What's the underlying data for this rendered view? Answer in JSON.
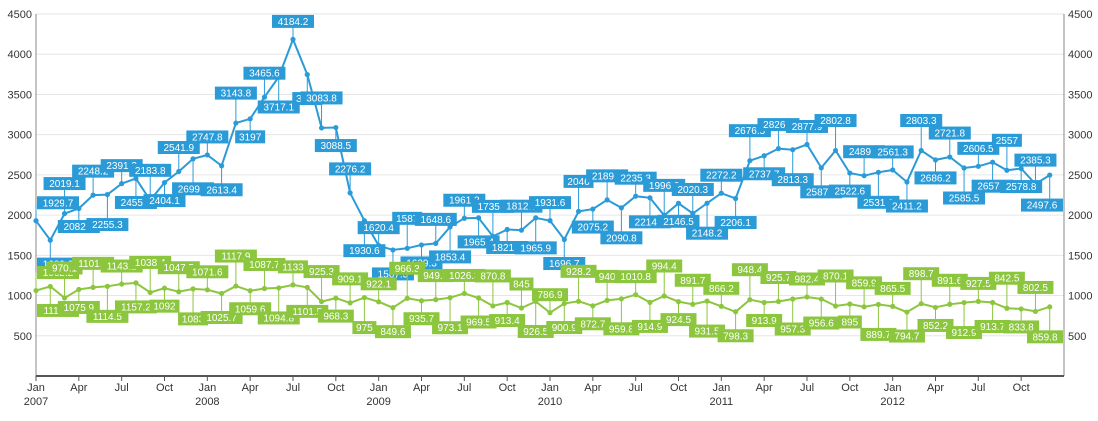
{
  "chart_data": {
    "type": "line",
    "x_axis": {
      "tick_labels": [
        {
          "month": "Jan",
          "year": "2007"
        },
        {
          "month": "Apr",
          "year": ""
        },
        {
          "month": "Jul",
          "year": ""
        },
        {
          "month": "Oct",
          "year": ""
        },
        {
          "month": "Jan",
          "year": "2008"
        },
        {
          "month": "Apr",
          "year": ""
        },
        {
          "month": "Jul",
          "year": ""
        },
        {
          "month": "Oct",
          "year": ""
        },
        {
          "month": "Jan",
          "year": "2009"
        },
        {
          "month": "Apr",
          "year": ""
        },
        {
          "month": "Jul",
          "year": ""
        },
        {
          "month": "Oct",
          "year": ""
        },
        {
          "month": "Jan",
          "year": "2010"
        },
        {
          "month": "Apr",
          "year": ""
        },
        {
          "month": "Jul",
          "year": ""
        },
        {
          "month": "Oct",
          "year": ""
        },
        {
          "month": "Jan",
          "year": "2011"
        },
        {
          "month": "Apr",
          "year": ""
        },
        {
          "month": "Jul",
          "year": ""
        },
        {
          "month": "Oct",
          "year": ""
        },
        {
          "month": "Jan",
          "year": "2012"
        },
        {
          "month": "Apr",
          "year": ""
        },
        {
          "month": "Jul",
          "year": ""
        },
        {
          "month": "Oct",
          "year": ""
        }
      ],
      "range": [
        "2007-01",
        "2012-12"
      ]
    },
    "y_axis": {
      "range": [
        0,
        4500
      ],
      "tick_labels": [
        "500",
        "1000",
        "1500",
        "2000",
        "2500",
        "3000",
        "3500",
        "4000",
        "4500"
      ],
      "tick_values": [
        500,
        1000,
        1500,
        2000,
        2500,
        3000,
        3500,
        4000,
        4500
      ],
      "right_axis_duplicate": true
    },
    "grid": true,
    "legend": "none",
    "x": [
      "2007-01",
      "2007-02",
      "2007-03",
      "2007-04",
      "2007-05",
      "2007-06",
      "2007-07",
      "2007-08",
      "2007-09",
      "2007-10",
      "2007-11",
      "2007-12",
      "2008-01",
      "2008-02",
      "2008-03",
      "2008-04",
      "2008-05",
      "2008-06",
      "2008-07",
      "2008-08",
      "2008-09",
      "2008-10",
      "2008-11",
      "2008-12",
      "2009-01",
      "2009-02",
      "2009-03",
      "2009-04",
      "2009-05",
      "2009-06",
      "2009-07",
      "2009-08",
      "2009-09",
      "2009-10",
      "2009-11",
      "2009-12",
      "2010-01",
      "2010-02",
      "2010-03",
      "2010-04",
      "2010-05",
      "2010-06",
      "2010-07",
      "2010-08",
      "2010-09",
      "2010-10",
      "2010-11",
      "2010-12",
      "2011-01",
      "2011-02",
      "2011-03",
      "2011-04",
      "2011-05",
      "2011-06",
      "2011-07",
      "2011-08",
      "2011-09",
      "2011-10",
      "2011-11",
      "2011-12",
      "2012-01",
      "2012-02",
      "2012-03",
      "2012-04",
      "2012-05",
      "2012-06",
      "2012-07",
      "2012-08",
      "2012-09",
      "2012-10",
      "2012-11",
      "2012-12"
    ],
    "series": [
      {
        "color": "#2b9bd8",
        "values": [
          1929.7,
          1689.2,
          2019.1,
          2082.1,
          2248.2,
          2255.3,
          2391.2,
          2455.4,
          2183.8,
          2404.1,
          2541.9,
          2699.9,
          2747.8,
          2613.4,
          3143.8,
          3197,
          3465.6,
          3717.1,
          4184.2,
          3747,
          3083.8,
          3088.5,
          2276.2,
          1930.6,
          1620.4,
          1567.3,
          1587,
          1629.3,
          1648.6,
          1853.4,
          1961.2,
          1965.4,
          1735.9,
          1821.3,
          1812.7,
          1965.9,
          1931.6,
          1696.7,
          2046,
          2075.2,
          2189.7,
          2090.8,
          2235.3,
          2214.6,
          1996.9,
          2146.5,
          2020.3,
          2148.2,
          2272.2,
          2206.1,
          2676.5,
          2737.7,
          2826.6,
          2813.3,
          2877.9,
          2587.7,
          2802.8,
          2522.6,
          2489.9,
          2531.9,
          2561.3,
          2411.2,
          2803.3,
          2686.2,
          2721.8,
          2585.5,
          2606.5,
          2657.9,
          2557,
          2578.8,
          2385.3,
          2497.6
        ],
        "labels": [
          "1929.7",
          "1689.2",
          "2019.1",
          "2082.1",
          "2248.2",
          "2255.3",
          "2391.2",
          "2455.4",
          "2183.8",
          "2404.1",
          "2541.9",
          "2699.9",
          "2747.8",
          "2613.4",
          "3143.8",
          "3197",
          "3465.6",
          "3717.1",
          "4184.2",
          "3747",
          "3083.8",
          "3088.5",
          "2276.2",
          "1930.6",
          "1620.4",
          "1567.3",
          "1587",
          "1629.3",
          "1648.6",
          "1853.4",
          "1961.2",
          "1965.4",
          "1735.9",
          "1821.3",
          "1812.7",
          "1965.9",
          "1931.6",
          "1696.7",
          "2046",
          "2075.2",
          "2189.7",
          "2090.8",
          "2235.3",
          "2214.6",
          "1996.9",
          "2146.5",
          "2020.3",
          "2148.2",
          "2272.2",
          "2206.1",
          "2676.5",
          "2737.7",
          "2826.6",
          "2813.3",
          "2877.9",
          "2587.7",
          "2802.8",
          "2522.6",
          "2489.9",
          "2531.9",
          "2561.3",
          "2411.2",
          "2803.3",
          "2686.2",
          "2721.8",
          "2585.5",
          "2606.5",
          "2657.9",
          "2557",
          "2578.8",
          "2385.3",
          "2497.6"
        ]
      },
      {
        "color": "#8cc63f",
        "values": [
          1062.2,
          1113.2,
          970.1,
          1075.9,
          1101.8,
          1114.5,
          1143.2,
          1157.2,
          1038.4,
          1092,
          1047.5,
          1083,
          1071.6,
          1025.7,
          1117.9,
          1059.6,
          1087.7,
          1094.8,
          1133,
          1101.5,
          925.3,
          968.3,
          909.1,
          975,
          922.1,
          849.6,
          966.3,
          935.7,
          949.3,
          973.1,
          1026.3,
          969.5,
          870.8,
          913.4,
          845,
          926.5,
          786.9,
          900.9,
          928.2,
          872.7,
          940,
          959.8,
          1010.8,
          914.9,
          994.4,
          924.5,
          891.7,
          931.5,
          866.2,
          798.3,
          948.4,
          913.9,
          925.7,
          957.3,
          982.4,
          956.6,
          870.1,
          895,
          859.9,
          889.7,
          865.5,
          794.7,
          898.7,
          852.2,
          891.6,
          912.9,
          927.5,
          913.7,
          842.5,
          833.8,
          802.5,
          859.8
        ],
        "labels": [
          "1062.2",
          "1113.2",
          "970.1",
          "1075.9",
          "1101.8",
          "1114.5",
          "1143.2",
          "1157.2",
          "1038.4",
          "1092",
          "1047.5",
          "1083",
          "1071.6",
          "1025.7",
          "1117.9",
          "1059.6",
          "1087.7",
          "1094.8",
          "1133",
          "1101.5",
          "925.3",
          "968.3",
          "909.1",
          "975",
          "922.1",
          "849.6",
          "966.3",
          "935.7",
          "949.3",
          "973.1",
          "1026.3",
          "969.5",
          "870.8",
          "913.4",
          "845",
          "926.5",
          "786.9",
          "900.9",
          "928.2",
          "872.7",
          "940",
          "959.8",
          "1010.8",
          "914.9",
          "994.4",
          "924.5",
          "891.7",
          "931.5",
          "866.2",
          "798.3",
          "948.4",
          "913.9",
          "925.7",
          "957.3",
          "982.4",
          "956.6",
          "870.1",
          "895",
          "859.9",
          "889.7",
          "865.5",
          "794.7",
          "898.7",
          "852.2",
          "891.6",
          "912.9",
          "927.5",
          "913.7",
          "842.5",
          "833.8",
          "802.5",
          "859.8"
        ]
      }
    ]
  }
}
